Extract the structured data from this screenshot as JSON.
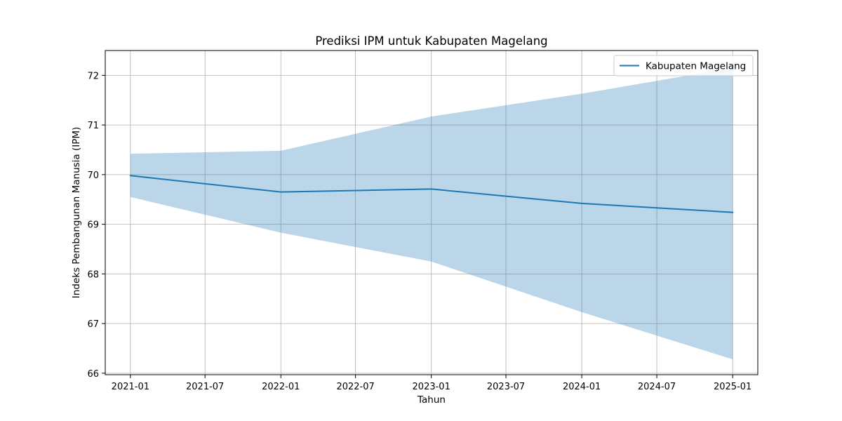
{
  "chart_data": {
    "type": "line",
    "title": "Prediksi IPM untuk Kabupaten Magelang",
    "xlabel": "Tahun",
    "ylabel": "Indeks Pembangunan Manusia (IPM)",
    "x_axis_type": "date",
    "xlim": [
      "2020-11-01",
      "2025-03-03"
    ],
    "ylim": [
      65.97,
      72.5
    ],
    "grid": true,
    "legend_position": "top-right",
    "x_ticks": [
      {
        "date": "2021-01-01",
        "label": "2021-01"
      },
      {
        "date": "2021-07-01",
        "label": "2021-07"
      },
      {
        "date": "2022-01-01",
        "label": "2022-01"
      },
      {
        "date": "2022-07-01",
        "label": "2022-07"
      },
      {
        "date": "2023-01-01",
        "label": "2023-01"
      },
      {
        "date": "2023-07-01",
        "label": "2023-07"
      },
      {
        "date": "2024-01-01",
        "label": "2024-01"
      },
      {
        "date": "2024-07-01",
        "label": "2024-07"
      },
      {
        "date": "2025-01-01",
        "label": "2025-01"
      }
    ],
    "y_ticks": [
      66,
      67,
      68,
      69,
      70,
      71,
      72
    ],
    "series": [
      {
        "name": "Kabupaten Magelang",
        "color": "#1f77b4",
        "points": [
          {
            "x": "2021-01-01",
            "y": 69.98
          },
          {
            "x": "2022-01-01",
            "y": 69.65
          },
          {
            "x": "2023-01-01",
            "y": 69.71
          },
          {
            "x": "2024-01-01",
            "y": 69.42
          },
          {
            "x": "2025-01-01",
            "y": 69.24
          }
        ]
      }
    ],
    "band": {
      "color": "#1f77b4",
      "opacity": 0.3,
      "points": [
        {
          "x": "2021-01-01",
          "lower": 69.55,
          "upper": 70.42
        },
        {
          "x": "2022-01-01",
          "lower": 68.83,
          "upper": 70.48
        },
        {
          "x": "2023-01-01",
          "lower": 68.25,
          "upper": 71.17
        },
        {
          "x": "2024-01-01",
          "lower": 67.23,
          "upper": 71.63
        },
        {
          "x": "2025-01-01",
          "lower": 66.28,
          "upper": 72.15
        }
      ]
    }
  }
}
